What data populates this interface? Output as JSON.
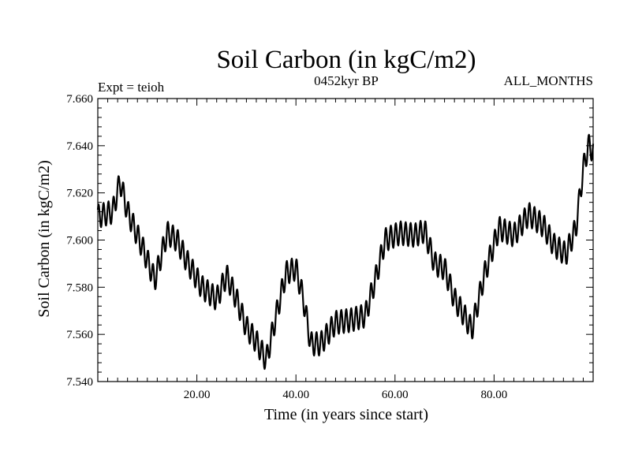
{
  "chart_data": {
    "type": "line",
    "title": "Soil Carbon (in kgC/m2)",
    "subtitle": "0452kyr BP",
    "annotation_left": "Expt = teioh",
    "annotation_right": "ALL_MONTHS",
    "xlabel": "Time (in years since start)",
    "ylabel": "Soil Carbon (in kgC/m2)",
    "xlim": [
      0,
      100
    ],
    "ylim": [
      7.54,
      7.66
    ],
    "x_ticks": [
      20,
      40,
      60,
      80
    ],
    "x_tick_labels": [
      "20.00",
      "40.00",
      "60.00",
      "80.00"
    ],
    "y_ticks": [
      7.54,
      7.56,
      7.58,
      7.6,
      7.62,
      7.64,
      7.66
    ],
    "y_tick_labels": [
      "7.540",
      "7.560",
      "7.580",
      "7.600",
      "7.620",
      "7.640",
      "7.660"
    ],
    "series": [
      {
        "name": "Soil Carbon",
        "color": "#000000",
        "seasonal_amplitude": 0.005,
        "trend": [
          [
            0,
            7.61
          ],
          [
            3,
            7.612
          ],
          [
            4.5,
            7.625
          ],
          [
            6,
            7.612
          ],
          [
            9,
            7.597
          ],
          [
            11.5,
            7.583
          ],
          [
            14,
            7.603
          ],
          [
            16,
            7.6
          ],
          [
            18,
            7.591
          ],
          [
            21,
            7.58
          ],
          [
            24,
            7.575
          ],
          [
            26,
            7.585
          ],
          [
            28,
            7.575
          ],
          [
            30,
            7.563
          ],
          [
            32,
            7.557
          ],
          [
            34,
            7.549
          ],
          [
            36,
            7.568
          ],
          [
            38,
            7.586
          ],
          [
            40,
            7.588
          ],
          [
            41.5,
            7.575
          ],
          [
            43,
            7.556
          ],
          [
            45,
            7.556
          ],
          [
            48,
            7.565
          ],
          [
            51,
            7.566
          ],
          [
            54,
            7.568
          ],
          [
            56,
            7.583
          ],
          [
            58,
            7.6
          ],
          [
            61,
            7.603
          ],
          [
            64,
            7.602
          ],
          [
            66,
            7.604
          ],
          [
            68,
            7.59
          ],
          [
            70,
            7.588
          ],
          [
            72,
            7.575
          ],
          [
            74,
            7.568
          ],
          [
            75.5,
            7.562
          ],
          [
            78,
            7.585
          ],
          [
            81,
            7.605
          ],
          [
            84,
            7.602
          ],
          [
            87,
            7.611
          ],
          [
            90,
            7.606
          ],
          [
            92,
            7.598
          ],
          [
            94.5,
            7.594
          ],
          [
            96.5,
            7.605
          ],
          [
            98,
            7.63
          ],
          [
            99,
            7.64
          ],
          [
            100,
            7.638
          ]
        ]
      }
    ]
  }
}
